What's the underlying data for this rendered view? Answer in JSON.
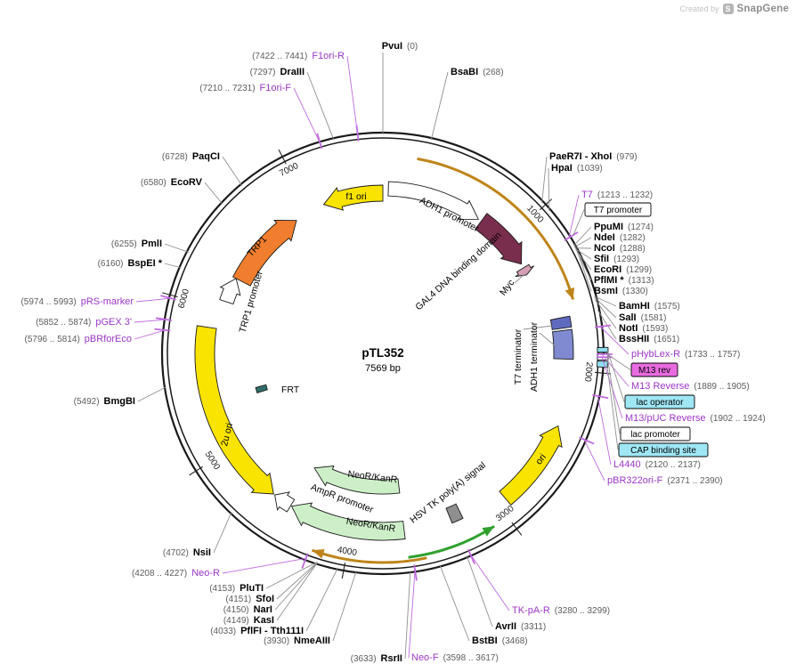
{
  "watermark": {
    "prefix": "Created by",
    "brand": "SnapGene"
  },
  "plasmid": {
    "name": "pTL352",
    "size": "7569 bp",
    "length_bp": 7569
  },
  "colors": {
    "backbone": "#1A1A1A",
    "primer_text": "#9C36C6",
    "primer_line": "#C06ADF",
    "enzyme_line": "#8F8F8F",
    "gold_arc": "#BF8419",
    "green_arc": "#2FA12E"
  },
  "axis_ticks": [
    {
      "bp": 1000,
      "label": "1000"
    },
    {
      "bp": 2000,
      "label": "2000"
    },
    {
      "bp": 3000,
      "label": "3000"
    },
    {
      "bp": 4000,
      "label": "4000"
    },
    {
      "bp": 5000,
      "label": "5000"
    },
    {
      "bp": 6000,
      "label": "6000"
    },
    {
      "bp": 7000,
      "label": "7000"
    }
  ],
  "features": [
    {
      "id": "f1-ori",
      "label": "f1 ori",
      "start": 7114,
      "end": 7569,
      "direction": "ccw",
      "color": "#F9E300",
      "kind": "band-arrow"
    },
    {
      "id": "adh1-promoter",
      "label": "ADH1 promoter",
      "start": 40,
      "end": 745,
      "direction": "cw",
      "color": "#FFFFFF",
      "kind": "band-arrow"
    },
    {
      "id": "gal4-dbd",
      "label": "GAL4 DNA binding domain",
      "start": 770,
      "end": 1202,
      "direction": "cw",
      "color": "#7A2E4D",
      "kind": "band-arrow"
    },
    {
      "id": "myc",
      "label": "Myc",
      "start": 1234,
      "end": 1290,
      "direction": "cw",
      "color": "#D49EB5",
      "kind": "band-arrow"
    },
    {
      "id": "t7-terminator",
      "label": "T7 terminator",
      "start": 1655,
      "end": 1725,
      "color": "#5F6BBE",
      "kind": "band"
    },
    {
      "id": "adh1-terminator",
      "label": "ADH1 terminator",
      "start": 1740,
      "end": 1930,
      "color": "#7F8AD0",
      "kind": "band"
    },
    {
      "id": "lac-operator-mark",
      "label": "lac operator",
      "start": 1860,
      "end": 1886,
      "color": "#8FE0F0",
      "kind": "band"
    },
    {
      "id": "lac-promoter-mark",
      "label": "lac promoter",
      "start": 1892,
      "end": 1928,
      "color": "#FFFFFF",
      "kind": "band"
    },
    {
      "id": "cap-binding-site-mark",
      "label": "CAP binding site",
      "start": 1935,
      "end": 1968,
      "color": "#8FE0F0",
      "kind": "band"
    },
    {
      "id": "ori",
      "label": "ori",
      "start": 2365,
      "end": 2940,
      "direction": "ccw",
      "color": "#F9E300",
      "kind": "band-arrow"
    },
    {
      "id": "hsv-tk-polya",
      "label": "HSV TK poly(A) signal",
      "start": 3240,
      "end": 3318,
      "color": "#8F8F8F",
      "kind": "band"
    },
    {
      "id": "neor-kanr-outer",
      "label": "NeoR/KanR",
      "start": 3640,
      "end": 4433,
      "direction": "cw",
      "color": "#CDEFC8",
      "kind": "band-arrow"
    },
    {
      "id": "neor-kanr-inner",
      "label": "NeoR/KanR",
      "start": 3640,
      "end": 4433,
      "direction": "cw",
      "color": "#CDEFC8",
      "kind": "band-arrow"
    },
    {
      "id": "ampr-promoter",
      "label": "AmpR promoter",
      "start": 4440,
      "end": 4570,
      "direction": "cw",
      "color": "#FFFFFF",
      "kind": "band-arrow"
    },
    {
      "id": "2u-ori",
      "label": "2u ori",
      "start": 4580,
      "end": 5855,
      "direction": "ccw",
      "color": "#F9E300",
      "kind": "band-arrow"
    },
    {
      "id": "frt",
      "label": "FRT",
      "start": 5310,
      "end": 5360,
      "color": "#2F6F6B",
      "kind": "band"
    },
    {
      "id": "trp1-promoter",
      "label": "TRP1 promoter",
      "start": 6060,
      "end": 6245,
      "direction": "cw",
      "color": "#FFFFFF",
      "kind": "band-arrow"
    },
    {
      "id": "trp1",
      "label": "TRP1",
      "start": 6245,
      "end": 6875,
      "direction": "cw",
      "color": "#F07E2E",
      "kind": "band-arrow"
    }
  ],
  "orf_arcs": [
    {
      "id": "orf-arc-top",
      "start": 210,
      "end": 1560,
      "direction": "cw",
      "color": "#BF8419"
    },
    {
      "id": "orf-arc-bottom",
      "start": 3530,
      "end": 4200,
      "direction": "cw",
      "color": "#BF8419"
    },
    {
      "id": "orf-arc-green",
      "start": 3095,
      "end": 3635,
      "direction": "ccw",
      "color": "#2FA12E"
    }
  ],
  "boxed_labels": [
    {
      "id": "t7-promoter",
      "label": "T7 promoter",
      "bp": 1222,
      "bg": "#FFFFFF"
    },
    {
      "id": "m13-rev",
      "label": "M13 rev",
      "bp": 1897,
      "bg": "#E86BE0"
    },
    {
      "id": "lac-operator",
      "label": "lac operator",
      "bp": 1873,
      "bg": "#9FE7F5"
    },
    {
      "id": "lac-promoter",
      "label": "lac promoter",
      "bp": 1908,
      "bg": "#FFFFFF"
    },
    {
      "id": "cap-binding-site",
      "label": "CAP binding site",
      "bp": 1950,
      "bg": "#9FE7F5"
    }
  ],
  "enzymes": [
    {
      "name": "PvuI",
      "coords": "(0)",
      "bp": 0
    },
    {
      "name": "BsaBI",
      "coords": "(268)",
      "bp": 268
    },
    {
      "name": "PaeR7I - XhoI",
      "coords": "(979)",
      "bp": 979
    },
    {
      "name": "HpaI",
      "coords": "(1039)",
      "bp": 1039
    },
    {
      "name": "PpuMI",
      "coords": "(1274)",
      "bp": 1274
    },
    {
      "name": "NdeI",
      "coords": "(1282)",
      "bp": 1282
    },
    {
      "name": "NcoI",
      "coords": "(1288)",
      "bp": 1288
    },
    {
      "name": "SfiI",
      "coords": "(1293)",
      "bp": 1293
    },
    {
      "name": "EcoRI",
      "coords": "(1299)",
      "bp": 1299
    },
    {
      "name": "PflMI *",
      "coords": "(1313)",
      "bp": 1313
    },
    {
      "name": "BsmI",
      "coords": "(1330)",
      "bp": 1330
    },
    {
      "name": "BamHI",
      "coords": "(1575)",
      "bp": 1575
    },
    {
      "name": "SalI",
      "coords": "(1581)",
      "bp": 1581
    },
    {
      "name": "NotI",
      "coords": "(1593)",
      "bp": 1593
    },
    {
      "name": "BssHII",
      "coords": "(1651)",
      "bp": 1651
    },
    {
      "name": "AvrII",
      "coords": "(3311)",
      "bp": 3311
    },
    {
      "name": "BstBI",
      "coords": "(3468)",
      "bp": 3468
    },
    {
      "name": "RsrII",
      "coords": "(3633)",
      "bp": 3633
    },
    {
      "name": "NmeAIII",
      "coords": "(3930)",
      "bp": 3930
    },
    {
      "name": "PflFI - Tth111I",
      "coords": "(4033)",
      "bp": 4033
    },
    {
      "name": "KasI",
      "coords": "(4149)",
      "bp": 4149
    },
    {
      "name": "NarI",
      "coords": "(4150)",
      "bp": 4150
    },
    {
      "name": "SfoI",
      "coords": "(4151)",
      "bp": 4151
    },
    {
      "name": "PluTI",
      "coords": "(4153)",
      "bp": 4153
    },
    {
      "name": "NsiI",
      "coords": "(4702)",
      "bp": 4702
    },
    {
      "name": "BmgBI",
      "coords": "(5492)",
      "bp": 5492
    },
    {
      "name": "BspEI *",
      "coords": "(6160)",
      "bp": 6160
    },
    {
      "name": "PmlI",
      "coords": "(6255)",
      "bp": 6255
    },
    {
      "name": "EcoRV",
      "coords": "(6580)",
      "bp": 6580
    },
    {
      "name": "PaqCI",
      "coords": "(6728)",
      "bp": 6728
    },
    {
      "name": "DraIII",
      "coords": "(7297)",
      "bp": 7297
    }
  ],
  "primers": [
    {
      "name": "T7",
      "coords": "(1213 .. 1232)",
      "bp": 1222
    },
    {
      "name": "pHybLex-R",
      "coords": "(1733 .. 1757)",
      "bp": 1745
    },
    {
      "name": "M13 Reverse",
      "coords": "(1889 .. 1905)",
      "bp": 1897
    },
    {
      "name": "M13/pUC Reverse",
      "coords": "(1902 .. 1924)",
      "bp": 1913
    },
    {
      "name": "L4440",
      "coords": "(2120 .. 2137)",
      "bp": 2128
    },
    {
      "name": "pBR322ori-F",
      "coords": "(2371 .. 2390)",
      "bp": 2380
    },
    {
      "name": "TK-pA-R",
      "coords": "(3280 .. 3299)",
      "bp": 3290
    },
    {
      "name": "Neo-F",
      "coords": "(3598 .. 3617)",
      "bp": 3607
    },
    {
      "name": "Neo-R",
      "coords": "(4208 .. 4227)",
      "bp": 4217
    },
    {
      "name": "pBRforEco",
      "coords": "(5796 .. 5814)",
      "bp": 5805
    },
    {
      "name": "pGEX 3'",
      "coords": "(5852 .. 5874)",
      "bp": 5863
    },
    {
      "name": "pRS-marker",
      "coords": "(5974 .. 5993)",
      "bp": 5983
    },
    {
      "name": "F1ori-F",
      "coords": "(7210 .. 7231)",
      "bp": 7220
    },
    {
      "name": "F1ori-R",
      "coords": "(7422 .. 7441)",
      "bp": 7431
    }
  ]
}
